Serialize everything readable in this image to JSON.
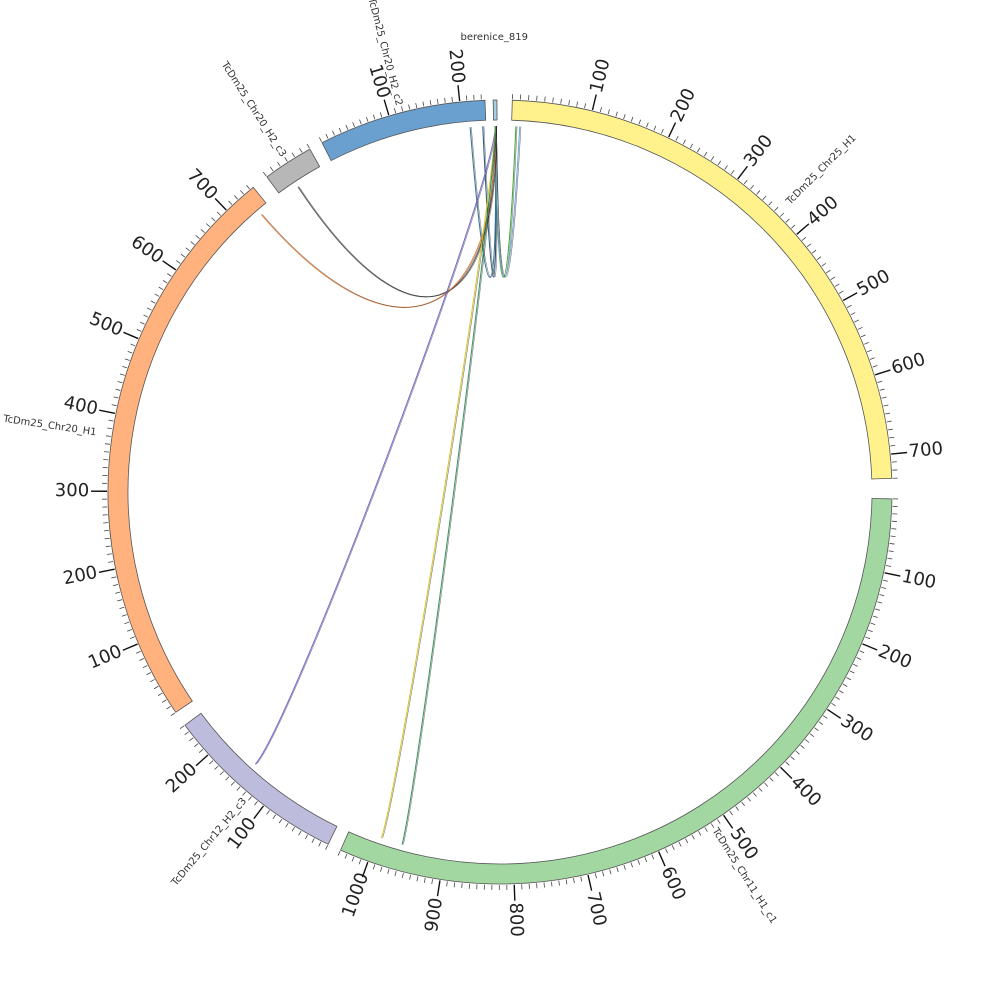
{
  "diagram": {
    "type": "circos",
    "segments": [
      {
        "id": "chr25h1",
        "name": "TcDm25_Chr25_H1",
        "length": 730,
        "color": "#fff28c",
        "label_every": 100,
        "tick_labels": [
          "100",
          "200",
          "300",
          "400",
          "500",
          "600",
          "700"
        ]
      },
      {
        "id": "chr11h1c1",
        "name": "TcDm25_Chr11_H1_c1",
        "length": 1040,
        "color": "#a3d7a1",
        "label_every": 100,
        "tick_labels": [
          "100",
          "200",
          "300",
          "400",
          "500",
          "600",
          "700",
          "800",
          "900",
          "1000"
        ]
      },
      {
        "id": "chr12h2c3",
        "name": "TcDm25_Chr12_H2_c3",
        "length": 250,
        "color": "#bebcdc",
        "label_every": 100,
        "tick_labels": [
          "100",
          "200"
        ]
      },
      {
        "id": "chr20h1",
        "name": "TcDm25_Chr20_H1",
        "length": 745,
        "color": "#ffb27d",
        "label_every": 100,
        "tick_labels": [
          "100",
          "200",
          "300",
          "400",
          "500",
          "600",
          "700"
        ]
      },
      {
        "id": "chr20h2c3",
        "name": "TcDm25_Chr20_H2_c3",
        "length": 60,
        "color": "#b7b7b7",
        "label_every": 100,
        "tick_labels": []
      },
      {
        "id": "chr20h2c2",
        "name": "TcDm25_Chr20_H2_c2",
        "length": 235,
        "color": "#6aa0cf",
        "label_every": 100,
        "tick_labels": [
          "100",
          "200"
        ]
      },
      {
        "id": "berenice",
        "name": "berenice_819",
        "length": 4,
        "color": "#a6cee3",
        "label_every": 100,
        "tick_labels": []
      }
    ],
    "links": [
      {
        "from": "berenice",
        "to": "chr20h2c2",
        "color": "#1f4e79"
      },
      {
        "from": "berenice",
        "to": "chr20h2c2",
        "color": "#2a6a8c"
      },
      {
        "from": "berenice",
        "to": "chr20h2c2",
        "color": "#33a02c"
      },
      {
        "from": "berenice",
        "to": "chr20h2c2",
        "color": "#6aa0cf"
      },
      {
        "from": "berenice",
        "to": "chr20h2c3",
        "color": "#4a4a4a"
      },
      {
        "from": "berenice",
        "to": "chr20h1",
        "color": "#e07b39"
      },
      {
        "from": "berenice",
        "to": "chr12h2c3",
        "color": "#6a5acd"
      },
      {
        "from": "berenice",
        "to": "chr11h1c1",
        "color": "#d4c21a"
      },
      {
        "from": "berenice",
        "to": "chr11h1c1",
        "color": "#2e8b57"
      }
    ]
  }
}
